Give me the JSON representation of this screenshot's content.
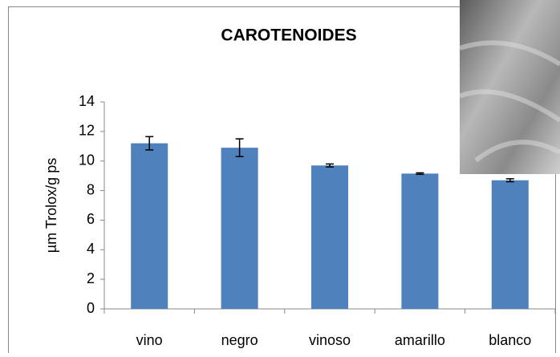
{
  "chart_data": {
    "type": "bar",
    "title": "CAROTENOIDES",
    "y_label": "µm Trolox/g ps",
    "categories": [
      "vino",
      "negro",
      "vinoso",
      "amarillo",
      "blanco"
    ],
    "values": [
      11.2,
      10.9,
      9.7,
      9.15,
      8.7
    ],
    "errors": [
      0.45,
      0.6,
      0.1,
      0.05,
      0.1
    ],
    "color": "#4f81bd",
    "ylim": [
      0,
      14
    ],
    "yticks": [
      0,
      2,
      4,
      6,
      8,
      10,
      12,
      14
    ]
  }
}
